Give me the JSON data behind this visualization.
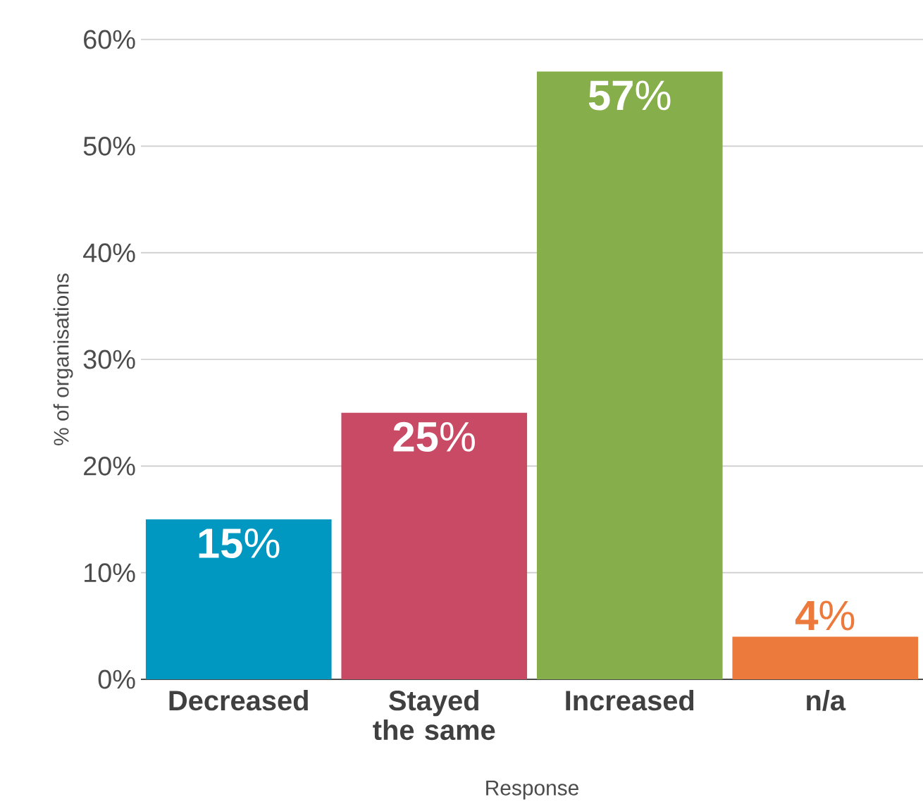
{
  "chart_data": {
    "type": "bar",
    "xlabel": "Response",
    "ylabel": "% of organisations",
    "categories": [
      "Decreased",
      "Stayed the same",
      "Increased",
      "n/a"
    ],
    "values": [
      15,
      25,
      57,
      4
    ],
    "colors": [
      "#0098c0",
      "#c94a65",
      "#86ae4a",
      "#ec7a3c"
    ],
    "value_labels": [
      "**15**%",
      "**25**%",
      "**57**%",
      "**4**%"
    ],
    "ylim": [
      0,
      60
    ],
    "yticks": [
      {
        "value": 0,
        "label": "0%"
      },
      {
        "value": 10,
        "label": "10%"
      },
      {
        "value": 20,
        "label": "20%"
      },
      {
        "value": 30,
        "label": "30%"
      },
      {
        "value": 40,
        "label": "40%"
      },
      {
        "value": 50,
        "label": "50%"
      },
      {
        "value": 60,
        "label": "60%"
      }
    ],
    "grid": "y"
  }
}
